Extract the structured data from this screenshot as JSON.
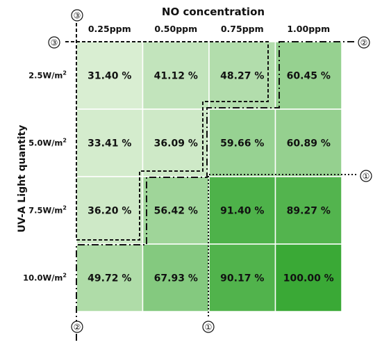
{
  "chart_data": {
    "type": "heatmap",
    "title": "NO concentration",
    "xlabel": "",
    "ylabel": "UV-A Light quantity",
    "columns": [
      "0.25ppm",
      "0.50ppm",
      "0.75ppm",
      "1.00ppm"
    ],
    "rows": [
      "2.5W/m",
      "5.0W/m",
      "7.5W/m",
      "10.0W/m"
    ],
    "row_unit_superscript": "2",
    "values": [
      [
        31.4,
        41.12,
        48.27,
        60.45
      ],
      [
        33.41,
        36.09,
        59.66,
        60.89
      ],
      [
        36.2,
        56.42,
        91.4,
        89.27
      ],
      [
        49.72,
        67.93,
        90.17,
        100.0
      ]
    ],
    "cell_labels": [
      [
        "31.40 %",
        "41.12 %",
        "48.27 %",
        "60.45 %"
      ],
      [
        "33.41 %",
        "36.09 %",
        "59.66 %",
        "60.89 %"
      ],
      [
        "36.20 %",
        "56.42 %",
        "91.40 %",
        "89.27 %"
      ],
      [
        "49.72 %",
        "67.93 %",
        "90.17 %",
        "100.00 %"
      ]
    ],
    "color_low": "#d9eed2",
    "color_high": "#3aa936",
    "boundary_markers": [
      "①",
      "②",
      "③"
    ]
  }
}
